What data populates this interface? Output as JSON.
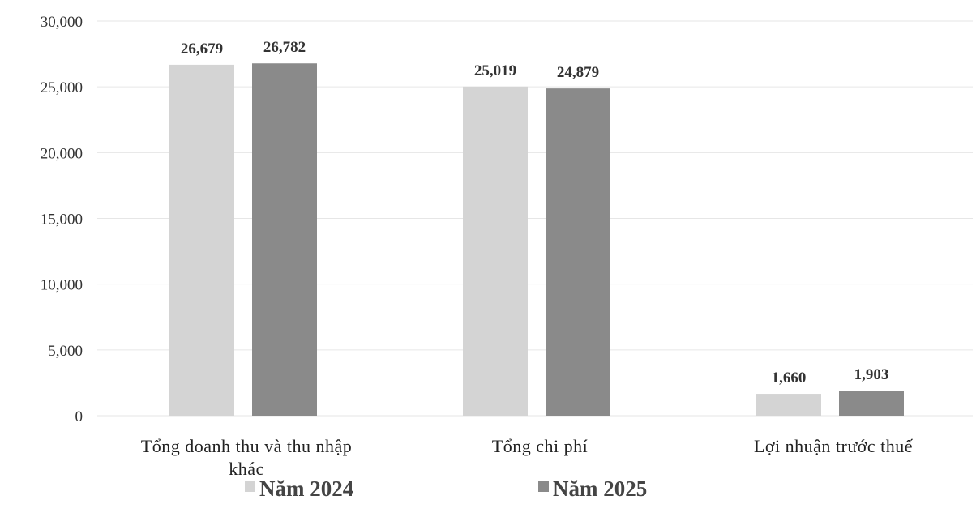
{
  "chart_data": {
    "type": "bar",
    "categories": [
      [
        "Tổng doanh thu và thu nhập",
        "khác"
      ],
      [
        "Tổng chi phí"
      ],
      [
        "Lợi nhuận trước thuế"
      ]
    ],
    "series": [
      {
        "name": "Năm 2024",
        "values": [
          26679,
          25019,
          1660
        ],
        "labels": [
          "26,679",
          "25,019",
          "1,660"
        ],
        "color": "#d4d4d4"
      },
      {
        "name": "Năm 2025",
        "values": [
          26782,
          24879,
          1903
        ],
        "labels": [
          "26,782",
          "24,879",
          "1,903"
        ],
        "color": "#8a8a8a"
      }
    ],
    "yticks": [
      {
        "value": 0,
        "label": "0"
      },
      {
        "value": 5000,
        "label": "5,000"
      },
      {
        "value": 10000,
        "label": "10,000"
      },
      {
        "value": 15000,
        "label": "15,000"
      },
      {
        "value": 20000,
        "label": "20,000"
      },
      {
        "value": 25000,
        "label": "25,000"
      },
      {
        "value": 30000,
        "label": "30,000"
      }
    ],
    "ylim": [
      0,
      30000
    ],
    "grid": true,
    "legend_position": "bottom",
    "title": "",
    "xlabel": "",
    "ylabel": ""
  }
}
